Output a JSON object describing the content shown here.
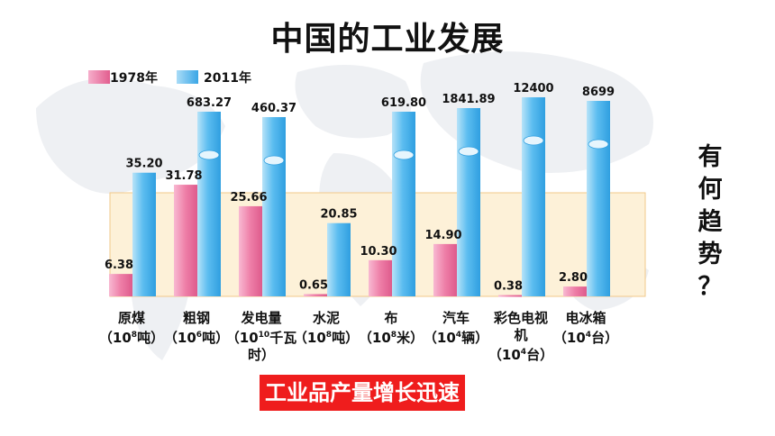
{
  "title": "中国的工业发展",
  "legend": {
    "series_1978": "1978年",
    "series_2011": "2011年"
  },
  "colors": {
    "series_1978": "#ec6f9d",
    "series_2011": "#46b3ec",
    "band": "#fdf1d8",
    "conclusion_bg": "#ef1d1d"
  },
  "side_question": [
    "有",
    "何",
    "趋",
    "势",
    "？"
  ],
  "conclusion": "工业品产量增长迅速",
  "categories": [
    {
      "name": "原煤",
      "unit_pre": "（10",
      "unit_sup": "8",
      "unit_post": "吨）"
    },
    {
      "name": "粗钢",
      "unit_pre": "（10",
      "unit_sup": "6",
      "unit_post": "吨）"
    },
    {
      "name": "发电量",
      "unit_pre": "（10",
      "unit_sup": "10",
      "unit_post": "千瓦",
      "unit_line2": "时）"
    },
    {
      "name": "水泥",
      "unit_pre": "（10",
      "unit_sup": "8",
      "unit_post": "吨）"
    },
    {
      "name": "布",
      "unit_pre": "（10",
      "unit_sup": "8",
      "unit_post": "米）"
    },
    {
      "name": "汽车",
      "unit_pre": "（10",
      "unit_sup": "4",
      "unit_post": "辆）"
    },
    {
      "name": "彩色电视",
      "name_line2": "机",
      "unit_pre": "（10",
      "unit_sup": "4",
      "unit_post": "台）"
    },
    {
      "name": "电冰箱",
      "unit_pre": "（10",
      "unit_sup": "4",
      "unit_post": "台）"
    }
  ],
  "chart_data": {
    "type": "bar",
    "title": "中国的工业发展",
    "categories": [
      "原煤",
      "粗钢",
      "发电量",
      "水泥",
      "布",
      "汽车",
      "彩色电视机",
      "电冰箱"
    ],
    "series": [
      {
        "name": "1978年",
        "values": [
          6.38,
          31.78,
          25.66,
          0.65,
          10.3,
          14.9,
          0.38,
          2.8
        ],
        "labels": [
          "6.38",
          "31.78",
          "25.66",
          "0.65",
          "10.30",
          "14.90",
          "0.38",
          "2.80"
        ]
      },
      {
        "name": "2011年",
        "values": [
          35.2,
          683.27,
          460.37,
          20.85,
          619.8,
          1841.89,
          12400,
          8699
        ],
        "labels": [
          "35.20",
          "683.27",
          "460.37",
          "20.85",
          "619.80",
          "1841.89",
          "12400",
          "8699"
        ]
      }
    ],
    "note": "Bars are drawn on a broken (non-uniform) scale; values above 40 are shown as tall truncated bars.",
    "legend_position": "top-left",
    "grid": false
  }
}
